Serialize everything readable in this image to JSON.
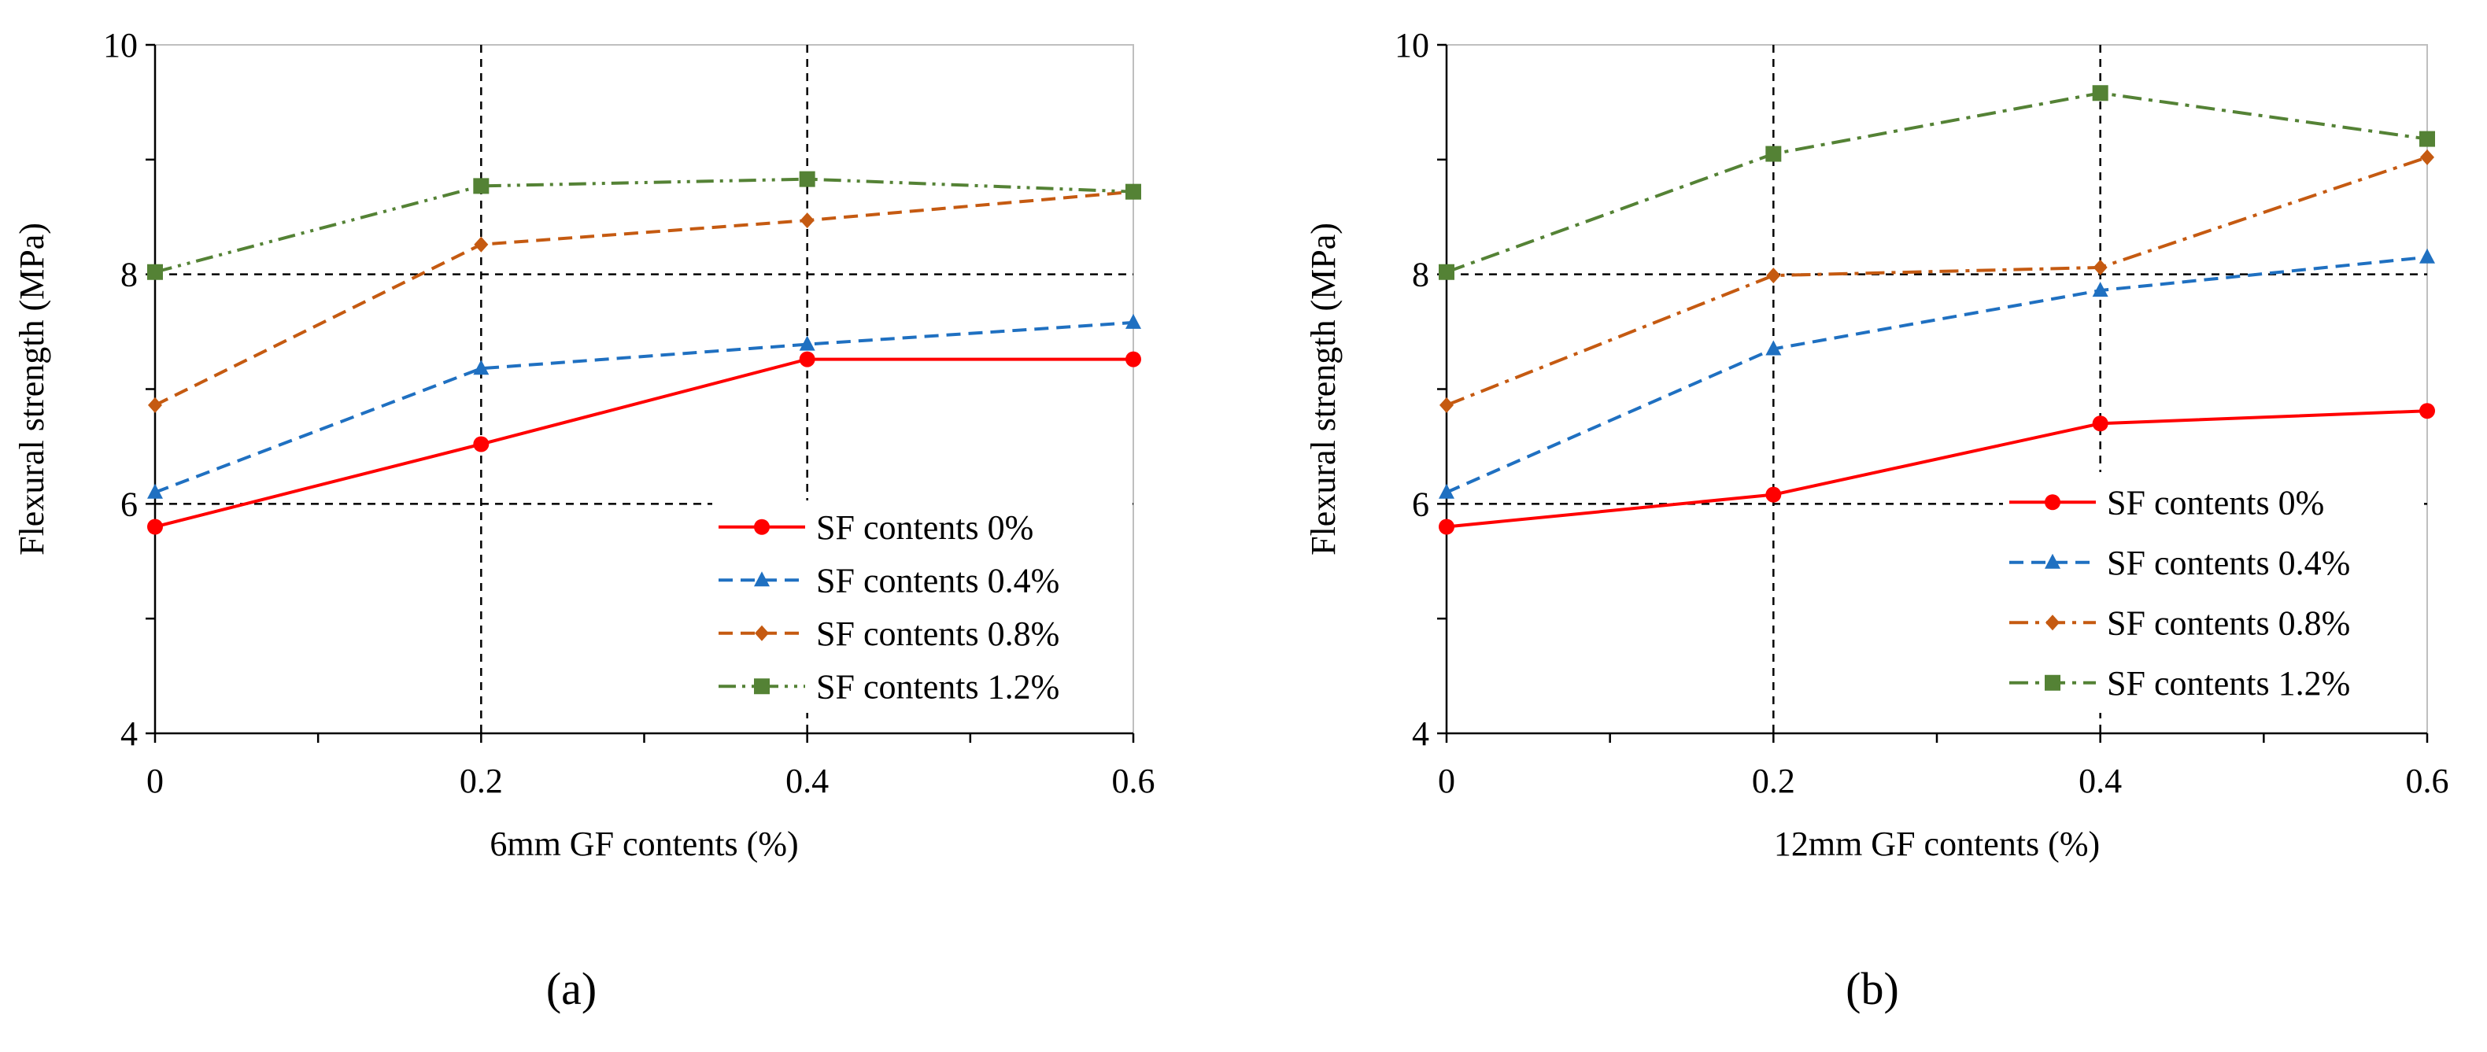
{
  "panels": [
    {
      "label": "(a)",
      "chart_data": {
        "type": "line",
        "title": "",
        "xlabel": "6mm GF contents (%)",
        "ylabel": "Flexural strength (MPa)",
        "x": [
          0,
          0.2,
          0.4,
          0.6
        ],
        "x_ticks": [
          "0",
          "0.2",
          "0.4",
          "0.6"
        ],
        "y_ticks": [
          "4",
          "6",
          "8",
          "10"
        ],
        "xlim": [
          0,
          0.6
        ],
        "ylim": [
          4,
          10
        ],
        "grid": "dashed lines at x=0.2, 0.4 and y=6, 8",
        "legend_position": "bottom-right",
        "series": [
          {
            "name": "SF contents 0%",
            "values": [
              5.8,
              6.52,
              7.26,
              7.26
            ],
            "color": "#ff0000",
            "marker": "circle",
            "dash": "solid"
          },
          {
            "name": "SF contents 0.4%",
            "values": [
              6.1,
              7.18,
              7.39,
              7.58
            ],
            "color": "#1f70c1",
            "marker": "triangle",
            "dash": "dashed"
          },
          {
            "name": "SF contents 0.8%",
            "values": [
              6.86,
              8.26,
              8.47,
              8.72
            ],
            "color": "#c55a11",
            "marker": "diamond",
            "dash": "dashed"
          },
          {
            "name": "SF contents 1.2%",
            "values": [
              8.02,
              8.77,
              8.83,
              8.72
            ],
            "color": "#548235",
            "marker": "square",
            "dash": "dash-dot-dot"
          }
        ]
      }
    },
    {
      "label": "(b)",
      "chart_data": {
        "type": "line",
        "title": "",
        "xlabel": "12mm GF contents (%)",
        "ylabel": "Flexural strength (MPa)",
        "x": [
          0,
          0.2,
          0.4,
          0.6
        ],
        "x_ticks": [
          "0",
          "0.2",
          "0.4",
          "0.6"
        ],
        "y_ticks": [
          "4",
          "6",
          "8",
          "10"
        ],
        "xlim": [
          0,
          0.6
        ],
        "ylim": [
          4,
          10
        ],
        "grid": "dashed lines at x=0.2, 0.4 and y=6, 8",
        "legend_position": "bottom-right",
        "series": [
          {
            "name": "SF contents 0%",
            "values": [
              5.8,
              6.08,
              6.7,
              6.81
            ],
            "color": "#ff0000",
            "marker": "circle",
            "dash": "solid"
          },
          {
            "name": "SF contents 0.4%",
            "values": [
              6.1,
              7.35,
              7.86,
              8.15
            ],
            "color": "#1f70c1",
            "marker": "triangle",
            "dash": "dashed"
          },
          {
            "name": "SF contents 0.8%",
            "values": [
              6.86,
              7.99,
              8.06,
              9.02
            ],
            "color": "#c55a11",
            "marker": "diamond",
            "dash": "dash-dot"
          },
          {
            "name": "SF contents 1.2%",
            "values": [
              8.02,
              9.05,
              9.58,
              9.18
            ],
            "color": "#548235",
            "marker": "square",
            "dash": "dash-dot"
          }
        ]
      }
    }
  ]
}
